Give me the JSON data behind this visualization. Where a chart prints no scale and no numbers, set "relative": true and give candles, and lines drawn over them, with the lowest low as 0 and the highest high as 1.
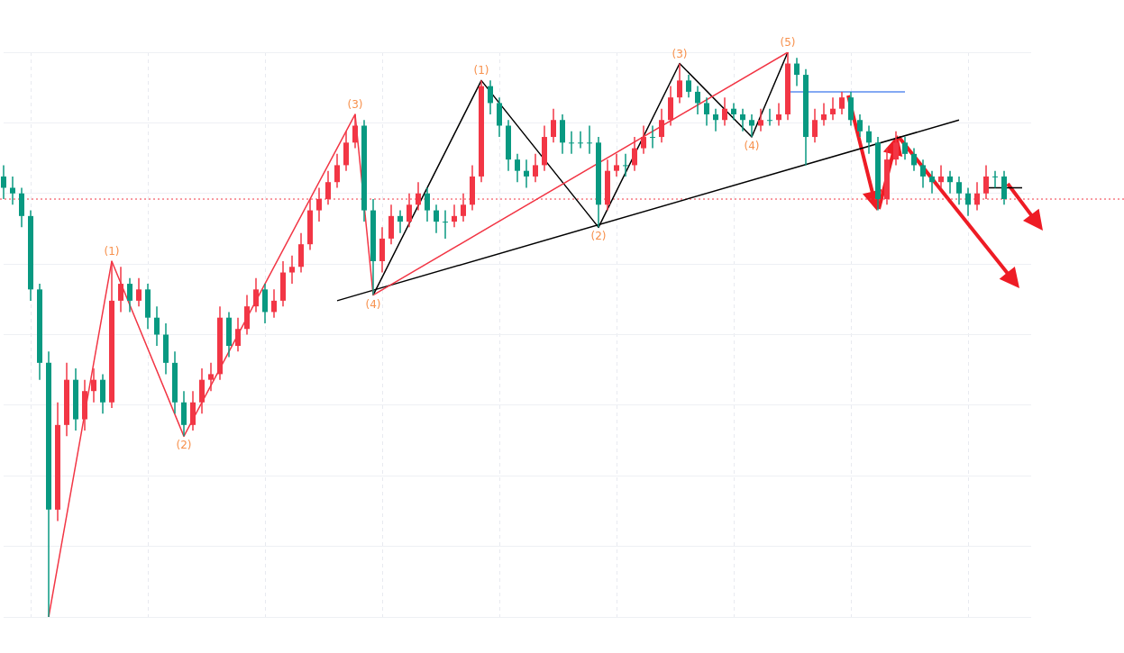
{
  "chart_data": {
    "type": "candlestick",
    "relative": true,
    "grid": true,
    "categories": [
      null,
      null,
      null,
      null,
      null,
      null,
      null,
      null,
      null,
      null,
      null,
      null,
      null,
      null,
      null,
      null,
      null,
      null,
      null,
      null,
      null,
      null,
      null,
      null,
      null,
      null,
      null,
      null,
      null,
      null,
      null,
      null,
      null,
      null,
      null,
      null,
      null,
      null,
      null,
      null,
      null,
      null,
      null,
      null,
      null,
      null,
      null,
      null,
      null,
      null,
      null,
      null,
      null,
      null,
      null,
      null,
      null,
      null,
      null,
      null,
      null,
      null,
      null,
      null,
      null,
      null,
      null,
      null,
      null,
      null,
      null,
      null,
      null,
      null,
      null,
      null,
      null,
      null,
      null,
      null,
      null,
      null,
      null,
      null,
      null,
      null,
      null,
      null,
      null,
      null,
      null,
      null,
      null,
      null,
      null,
      null,
      null,
      null,
      null,
      null,
      null,
      null,
      null,
      null,
      null,
      null,
      null,
      null,
      null,
      null,
      null,
      null,
      null,
      null,
      null
    ],
    "ohlc": [
      [
        0.78,
        0.8,
        0.74,
        0.76
      ],
      [
        0.76,
        0.78,
        0.73,
        0.75
      ],
      [
        0.75,
        0.76,
        0.69,
        0.71
      ],
      [
        0.71,
        0.72,
        0.56,
        0.58
      ],
      [
        0.58,
        0.59,
        0.42,
        0.45
      ],
      [
        0.45,
        0.47,
        0,
        0.19
      ],
      [
        0.19,
        0.38,
        0.17,
        0.34
      ],
      [
        0.34,
        0.45,
        0.32,
        0.42
      ],
      [
        0.42,
        0.44,
        0.33,
        0.35
      ],
      [
        0.35,
        0.42,
        0.33,
        0.4
      ],
      [
        0.4,
        0.44,
        0.38,
        0.42
      ],
      [
        0.42,
        0.43,
        0.36,
        0.38
      ],
      [
        0.38,
        0.63,
        0.37,
        0.56
      ],
      [
        0.56,
        0.62,
        0.54,
        0.59
      ],
      [
        0.59,
        0.6,
        0.54,
        0.56
      ],
      [
        0.56,
        0.6,
        0.55,
        0.58
      ],
      [
        0.58,
        0.59,
        0.51,
        0.53
      ],
      [
        0.53,
        0.55,
        0.48,
        0.5
      ],
      [
        0.5,
        0.52,
        0.43,
        0.45
      ],
      [
        0.45,
        0.47,
        0.36,
        0.38
      ],
      [
        0.38,
        0.4,
        0.32,
        0.34
      ],
      [
        0.34,
        0.4,
        0.33,
        0.38
      ],
      [
        0.38,
        0.44,
        0.36,
        0.42
      ],
      [
        0.42,
        0.45,
        0.4,
        0.43
      ],
      [
        0.43,
        0.55,
        0.42,
        0.53
      ],
      [
        0.53,
        0.54,
        0.46,
        0.48
      ],
      [
        0.48,
        0.53,
        0.47,
        0.51
      ],
      [
        0.51,
        0.57,
        0.5,
        0.55
      ],
      [
        0.55,
        0.6,
        0.54,
        0.58
      ],
      [
        0.58,
        0.59,
        0.52,
        0.54
      ],
      [
        0.54,
        0.58,
        0.53,
        0.56
      ],
      [
        0.56,
        0.63,
        0.55,
        0.61
      ],
      [
        0.61,
        0.64,
        0.59,
        0.62
      ],
      [
        0.62,
        0.68,
        0.61,
        0.66
      ],
      [
        0.66,
        0.74,
        0.65,
        0.72
      ],
      [
        0.72,
        0.76,
        0.7,
        0.74
      ],
      [
        0.74,
        0.79,
        0.73,
        0.77
      ],
      [
        0.77,
        0.82,
        0.76,
        0.8
      ],
      [
        0.8,
        0.86,
        0.79,
        0.84
      ],
      [
        0.84,
        0.89,
        0.83,
        0.87
      ],
      [
        0.87,
        0.88,
        0.7,
        0.72
      ],
      [
        0.72,
        0.74,
        0.57,
        0.63
      ],
      [
        0.63,
        0.69,
        0.61,
        0.67
      ],
      [
        0.67,
        0.73,
        0.66,
        0.71
      ],
      [
        0.71,
        0.72,
        0.68,
        0.7
      ],
      [
        0.7,
        0.75,
        0.69,
        0.73
      ],
      [
        0.73,
        0.77,
        0.72,
        0.75
      ],
      [
        0.75,
        0.76,
        0.7,
        0.72
      ],
      [
        0.72,
        0.73,
        0.68,
        0.7
      ],
      [
        0.7,
        0.72,
        0.67,
        0.7
      ],
      [
        0.7,
        0.73,
        0.69,
        0.71
      ],
      [
        0.71,
        0.75,
        0.7,
        0.73
      ],
      [
        0.73,
        0.8,
        0.72,
        0.78
      ],
      [
        0.78,
        0.95,
        0.77,
        0.94
      ],
      [
        0.94,
        0.95,
        0.89,
        0.91
      ],
      [
        0.91,
        0.92,
        0.85,
        0.87
      ],
      [
        0.87,
        0.88,
        0.79,
        0.81
      ],
      [
        0.81,
        0.82,
        0.77,
        0.79
      ],
      [
        0.79,
        0.81,
        0.76,
        0.78
      ],
      [
        0.78,
        0.82,
        0.77,
        0.8
      ],
      [
        0.8,
        0.87,
        0.79,
        0.85
      ],
      [
        0.85,
        0.9,
        0.84,
        0.88
      ],
      [
        0.88,
        0.89,
        0.82,
        0.84
      ],
      [
        0.84,
        0.86,
        0.82,
        0.84
      ],
      [
        0.84,
        0.86,
        0.83,
        0.84
      ],
      [
        0.84,
        0.87,
        0.82,
        0.84
      ],
      [
        0.84,
        0.85,
        0.69,
        0.73
      ],
      [
        0.73,
        0.81,
        0.72,
        0.79
      ],
      [
        0.79,
        0.82,
        0.78,
        0.8
      ],
      [
        0.8,
        0.82,
        0.78,
        0.8
      ],
      [
        0.8,
        0.85,
        0.79,
        0.83
      ],
      [
        0.83,
        0.87,
        0.82,
        0.85
      ],
      [
        0.85,
        0.87,
        0.83,
        0.85
      ],
      [
        0.85,
        0.9,
        0.84,
        0.88
      ],
      [
        0.88,
        0.94,
        0.87,
        0.92
      ],
      [
        0.92,
        0.98,
        0.91,
        0.95
      ],
      [
        0.95,
        0.96,
        0.92,
        0.93
      ],
      [
        0.93,
        0.94,
        0.89,
        0.91
      ],
      [
        0.91,
        0.92,
        0.87,
        0.89
      ],
      [
        0.89,
        0.9,
        0.86,
        0.88
      ],
      [
        0.88,
        0.92,
        0.87,
        0.9
      ],
      [
        0.9,
        0.91,
        0.88,
        0.89
      ],
      [
        0.89,
        0.9,
        0.86,
        0.88
      ],
      [
        0.88,
        0.89,
        0.85,
        0.87
      ],
      [
        0.87,
        0.9,
        0.86,
        0.88
      ],
      [
        0.88,
        0.9,
        0.87,
        0.88
      ],
      [
        0.88,
        0.91,
        0.87,
        0.89
      ],
      [
        0.89,
        1,
        0.88,
        0.98
      ],
      [
        0.98,
        0.99,
        0.94,
        0.96
      ],
      [
        0.96,
        0.97,
        0.8,
        0.85
      ],
      [
        0.85,
        0.9,
        0.84,
        0.88
      ],
      [
        0.88,
        0.91,
        0.87,
        0.89
      ],
      [
        0.89,
        0.92,
        0.88,
        0.9
      ],
      [
        0.9,
        0.93,
        0.89,
        0.92
      ],
      [
        0.92,
        0.93,
        0.87,
        0.88
      ],
      [
        0.88,
        0.89,
        0.85,
        0.86
      ],
      [
        0.86,
        0.87,
        0.82,
        0.84
      ],
      [
        0.84,
        0.85,
        0.72,
        0.74
      ],
      [
        0.74,
        0.83,
        0.73,
        0.81
      ],
      [
        0.81,
        0.86,
        0.8,
        0.84
      ],
      [
        0.84,
        0.85,
        0.81,
        0.82
      ],
      [
        0.82,
        0.83,
        0.79,
        0.8
      ],
      [
        0.8,
        0.81,
        0.76,
        0.78
      ],
      [
        0.78,
        0.79,
        0.75,
        0.77
      ],
      [
        0.77,
        0.8,
        0.76,
        0.78
      ],
      [
        0.78,
        0.79,
        0.75,
        0.77
      ],
      [
        0.77,
        0.78,
        0.73,
        0.75
      ],
      [
        0.75,
        0.76,
        0.71,
        0.73
      ],
      [
        0.73,
        0.77,
        0.72,
        0.75
      ],
      [
        0.75,
        0.8,
        0.74,
        0.78
      ],
      [
        0.78,
        0.79,
        0.76,
        0.78
      ],
      [
        0.78,
        0.79,
        0.73,
        0.74
      ],
      null,
      null,
      null
    ],
    "colors": [
      "#089981",
      "#089981",
      "#089981",
      "#089981",
      "#089981",
      "#089981",
      "#f23645",
      "#f23645",
      "#089981",
      "#f23645",
      "#f23645",
      "#089981",
      "#f23645",
      "#f23645",
      "#089981",
      "#f23645",
      "#089981",
      "#089981",
      "#089981",
      "#089981",
      "#089981",
      "#f23645",
      "#f23645",
      "#f23645",
      "#f23645",
      "#089981",
      "#f23645",
      "#f23645",
      "#f23645",
      "#089981",
      "#f23645",
      "#f23645",
      "#f23645",
      "#f23645",
      "#f23645",
      "#f23645",
      "#f23645",
      "#f23645",
      "#f23645",
      "#f23645",
      "#089981",
      "#089981",
      "#f23645",
      "#f23645",
      "#089981",
      "#f23645",
      "#f23645",
      "#089981",
      "#089981",
      "#089981",
      "#f23645",
      "#f23645",
      "#f23645",
      "#f23645",
      "#089981",
      "#089981",
      "#089981",
      "#089981",
      "#089981",
      "#f23645",
      "#f23645",
      "#f23645",
      "#089981",
      "#089981",
      "#089981",
      "#089981",
      "#089981",
      "#f23645",
      "#f23645",
      "#089981",
      "#f23645",
      "#f23645",
      "#089981",
      "#f23645",
      "#f23645",
      "#f23645",
      "#089981",
      "#089981",
      "#089981",
      "#089981",
      "#f23645",
      "#089981",
      "#089981",
      "#089981",
      "#f23645",
      "#089981",
      "#f23645",
      "#f23645",
      "#089981",
      "#089981",
      "#f23645",
      "#f23645",
      "#f23645",
      "#f23645",
      "#089981",
      "#089981",
      "#089981",
      "#089981",
      "#f23645",
      "#f23645",
      "#089981",
      "#089981",
      "#089981",
      "#089981",
      "#f23645",
      "#089981",
      "#089981",
      "#089981",
      "#f23645",
      "#f23645",
      "#089981",
      "#089981",
      null,
      null,
      null
    ],
    "series": [
      {
        "type": "line",
        "color": "#f23645",
        "values": [
          null,
          null,
          null,
          null,
          null,
          0,
          null,
          null,
          null,
          null,
          null,
          null,
          0.63,
          null,
          null,
          null,
          null,
          null,
          null,
          null,
          0.32,
          null,
          null,
          null,
          null,
          null,
          null,
          null,
          null,
          null,
          null,
          null,
          null,
          null,
          null,
          null,
          null,
          null,
          null,
          0.89,
          null,
          0.57,
          null,
          null,
          null,
          null,
          null,
          null,
          null,
          null,
          null,
          null,
          null,
          null,
          null,
          null,
          null,
          null,
          null,
          null,
          null,
          null,
          null,
          null,
          null,
          null,
          null,
          null,
          null,
          null,
          null,
          null,
          null,
          null,
          null,
          null,
          null,
          null,
          null,
          null,
          null,
          null,
          null,
          null,
          null,
          null,
          null,
          1,
          null,
          null,
          null,
          null,
          null,
          null,
          null,
          null,
          null,
          null,
          null,
          null,
          null,
          null,
          null,
          null,
          null,
          null,
          null,
          null,
          null,
          null,
          null,
          null,
          null,
          null,
          null
        ]
      },
      {
        "type": "line",
        "color": "#000000",
        "values": [
          null,
          null,
          null,
          null,
          null,
          null,
          null,
          null,
          null,
          null,
          null,
          null,
          null,
          null,
          null,
          null,
          null,
          null,
          null,
          null,
          null,
          null,
          null,
          null,
          null,
          null,
          null,
          null,
          null,
          null,
          null,
          null,
          null,
          null,
          null,
          null,
          null,
          null,
          null,
          null,
          null,
          0.57,
          null,
          null,
          null,
          null,
          null,
          null,
          null,
          null,
          null,
          null,
          null,
          0.95,
          null,
          null,
          null,
          null,
          null,
          null,
          null,
          null,
          null,
          null,
          null,
          null,
          0.69,
          null,
          null,
          null,
          null,
          null,
          null,
          null,
          null,
          0.98,
          null,
          null,
          null,
          null,
          null,
          null,
          null,
          0.85,
          null,
          null,
          null,
          1,
          null,
          null,
          null,
          null,
          null,
          null,
          null,
          null,
          null,
          null,
          null,
          null,
          null,
          null,
          null,
          null,
          null,
          null,
          null,
          null,
          null,
          null,
          null,
          null,
          null,
          null,
          null
        ]
      },
      {
        "type": "line",
        "color": "#000000",
        "values": [
          null,
          null,
          null,
          null,
          null,
          null,
          null,
          null,
          null,
          null,
          null,
          null,
          null,
          null,
          null,
          null,
          null,
          null,
          null,
          null,
          null,
          null,
          null,
          null,
          null,
          null,
          null,
          null,
          null,
          null,
          null,
          null,
          null,
          null,
          null,
          null,
          null,
          0.56,
          null,
          null,
          null,
          null,
          null,
          null,
          null,
          null,
          null,
          null,
          null,
          null,
          null,
          null,
          null,
          null,
          null,
          null,
          null,
          null,
          null,
          null,
          null,
          null,
          null,
          null,
          null,
          null,
          null,
          null,
          null,
          null,
          null,
          null,
          null,
          null,
          null,
          null,
          null,
          null,
          null,
          null,
          null,
          null,
          null,
          null,
          null,
          null,
          null,
          null,
          null,
          null,
          null,
          null,
          null,
          null,
          null,
          null,
          null,
          null,
          null,
          null,
          null,
          null,
          null,
          null,
          null,
          null,
          0.88,
          null,
          null,
          null,
          null,
          null,
          null,
          null,
          null
        ]
      },
      {
        "type": "line",
        "color": "#5b8def",
        "values": [
          null,
          null,
          null,
          null,
          null,
          null,
          null,
          null,
          null,
          null,
          null,
          null,
          null,
          null,
          null,
          null,
          null,
          null,
          null,
          null,
          null,
          null,
          null,
          null,
          null,
          null,
          null,
          null,
          null,
          null,
          null,
          null,
          null,
          null,
          null,
          null,
          null,
          null,
          null,
          null,
          null,
          null,
          null,
          null,
          null,
          null,
          null,
          null,
          null,
          null,
          null,
          null,
          null,
          null,
          null,
          null,
          null,
          null,
          null,
          null,
          null,
          null,
          null,
          null,
          null,
          null,
          null,
          null,
          null,
          null,
          null,
          null,
          null,
          null,
          null,
          null,
          null,
          null,
          null,
          null,
          null,
          null,
          null,
          null,
          null,
          null,
          null,
          0.93,
          null,
          null,
          null,
          null,
          null,
          null,
          null,
          null,
          null,
          null,
          null,
          null,
          0.93,
          null,
          null,
          null,
          null,
          null,
          null,
          null,
          null,
          null,
          null,
          null,
          null,
          null,
          null
        ]
      },
      {
        "type": "line",
        "color": "#000000",
        "values": [
          null,
          null,
          null,
          null,
          null,
          null,
          null,
          null,
          null,
          null,
          null,
          null,
          null,
          null,
          null,
          null,
          null,
          null,
          null,
          null,
          null,
          null,
          null,
          null,
          null,
          null,
          null,
          null,
          null,
          null,
          null,
          null,
          null,
          null,
          null,
          null,
          null,
          null,
          null,
          null,
          null,
          null,
          null,
          null,
          null,
          null,
          null,
          null,
          null,
          null,
          null,
          null,
          null,
          null,
          null,
          null,
          null,
          null,
          null,
          null,
          null,
          null,
          null,
          null,
          null,
          null,
          null,
          null,
          null,
          null,
          null,
          null,
          null,
          null,
          null,
          null,
          null,
          null,
          null,
          null,
          null,
          null,
          null,
          null,
          null,
          null,
          null,
          null,
          null,
          null,
          null,
          null,
          null,
          null,
          null,
          null,
          null,
          null,
          null,
          null,
          null,
          null,
          null,
          null,
          null,
          null,
          null,
          null,
          null,
          0.76,
          null,
          null,
          null,
          0.76,
          null
        ]
      }
    ],
    "annotations": [
      {
        "text": "(1)",
        "y": 0.63
      },
      {
        "text": "(2)",
        "y": 0.32
      },
      {
        "text": "(3)",
        "y": 0.89
      },
      {
        "text": "(4)",
        "y": 0.57
      },
      {
        "text": "(1)",
        "y": 0.95
      },
      {
        "text": "(2)",
        "y": 0.69
      },
      {
        "text": "(3)",
        "y": 0.98
      },
      {
        "text": "(4)",
        "y": 0.85
      },
      {
        "text": "(5)",
        "y": 1
      }
    ],
    "ref_lines": [
      {
        "axis": "y",
        "value": 0.74,
        "color": "#f23645",
        "line_style": "dotted"
      }
    ]
  }
}
